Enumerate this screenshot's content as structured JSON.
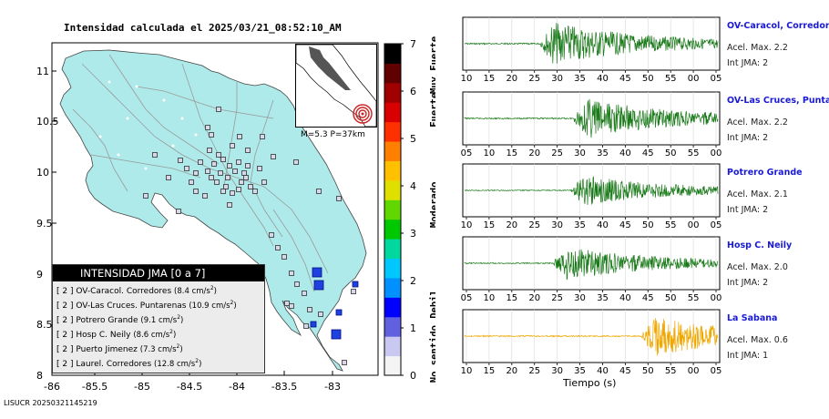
{
  "title": "Intensidad calculada el 2025/03/21_08:52:10_AM",
  "footer_code": "LISUCR 20250321145219",
  "map": {
    "lat_ticks": [
      "11",
      "10.5",
      "10",
      "9.5",
      "9",
      "8.5",
      "8"
    ],
    "lon_ticks": [
      "-86",
      "-85.5",
      "-85",
      "-84.5",
      "-84",
      "-83.5",
      "-83"
    ],
    "land_color": "#aeeaea",
    "event_color": "#cc2222",
    "inset_caption": "M=5.3 P=37km"
  },
  "colorbar": {
    "ticks": [
      "0",
      "1",
      "2",
      "3",
      "4",
      "5",
      "6",
      "7"
    ],
    "category_labels": [
      "No sentido",
      "Debil",
      "Moderado",
      "Fuerte",
      "Muy Fuerte"
    ],
    "colors": [
      "#f4f4f4",
      "#c8c8f0",
      "#6060e0",
      "#0000ff",
      "#0090ff",
      "#00c8ff",
      "#00d8a0",
      "#00c800",
      "#60d800",
      "#e0e000",
      "#ffc000",
      "#ff8000",
      "#ff3000",
      "#d80000",
      "#a00000",
      "#600000",
      "#000000"
    ]
  },
  "legend": {
    "title": "INTENSIDAD JMA [0 a 7]",
    "rows": [
      {
        "level": "[ 2 ]",
        "name": "OV-Caracol. Corredores",
        "accel": "(8.4 cm/s",
        "exp": "2",
        "close": ")"
      },
      {
        "level": "[ 2 ]",
        "name": "OV-Las Cruces. Puntarenas",
        "accel": "(10.9 cm/s",
        "exp": "2",
        "close": ")"
      },
      {
        "level": "[ 2 ]",
        "name": "Potrero Grande",
        "accel": "(9.1 cm/s",
        "exp": "2",
        "close": ")"
      },
      {
        "level": "[ 2 ]",
        "name": "Hosp C. Neily",
        "accel": "(8.6 cm/s",
        "exp": "2",
        "close": ")"
      },
      {
        "level": "[ 2 ]",
        "name": "Puerto Jimenez",
        "accel": "(7.3 cm/s",
        "exp": "2",
        "close": ")"
      },
      {
        "level": "[ 2 ]",
        "name": "Laurel. Corredores",
        "accel": "(12.8 cm/s",
        "exp": "2",
        "close": ")"
      }
    ]
  },
  "seismograms": [
    {
      "name": "OV-Caracol, Corredore",
      "accel": "Acel. Max. 2.2",
      "int": "Int JMA: 2",
      "color": "#1a7a1a",
      "ticks": [
        "10",
        "15",
        "20",
        "25",
        "30",
        "35",
        "40",
        "45",
        "50",
        "55",
        "00",
        "05"
      ]
    },
    {
      "name": "OV-Las Cruces, Puntar",
      "accel": "Acel. Max. 2.2",
      "int": "Int JMA: 2",
      "color": "#1a7a1a",
      "ticks": [
        "05",
        "10",
        "15",
        "20",
        "25",
        "30",
        "35",
        "40",
        "45",
        "50",
        "55",
        "00"
      ]
    },
    {
      "name": "Potrero Grande",
      "accel": "Acel. Max. 2.1",
      "int": "Int JMA: 2",
      "color": "#1a7a1a",
      "ticks": [
        "10",
        "15",
        "20",
        "25",
        "30",
        "35",
        "40",
        "45",
        "50",
        "55",
        "00",
        "05"
      ]
    },
    {
      "name": "Hosp C. Neily",
      "accel": "Acel. Max. 2.0",
      "int": "Int JMA: 2",
      "color": "#1a7a1a",
      "ticks": [
        "05",
        "10",
        "15",
        "20",
        "25",
        "30",
        "35",
        "40",
        "45",
        "50",
        "55",
        "00"
      ]
    },
    {
      "name": "La Sabana",
      "accel": "Acel. Max. 0.6",
      "int": "Int JMA: 1",
      "color": "#f0a800",
      "ticks": [
        "10",
        "15",
        "20",
        "25",
        "30",
        "35",
        "40",
        "45",
        "50",
        "55",
        "00",
        "05"
      ]
    }
  ],
  "time_axis_label": "Tiempo (s)"
}
